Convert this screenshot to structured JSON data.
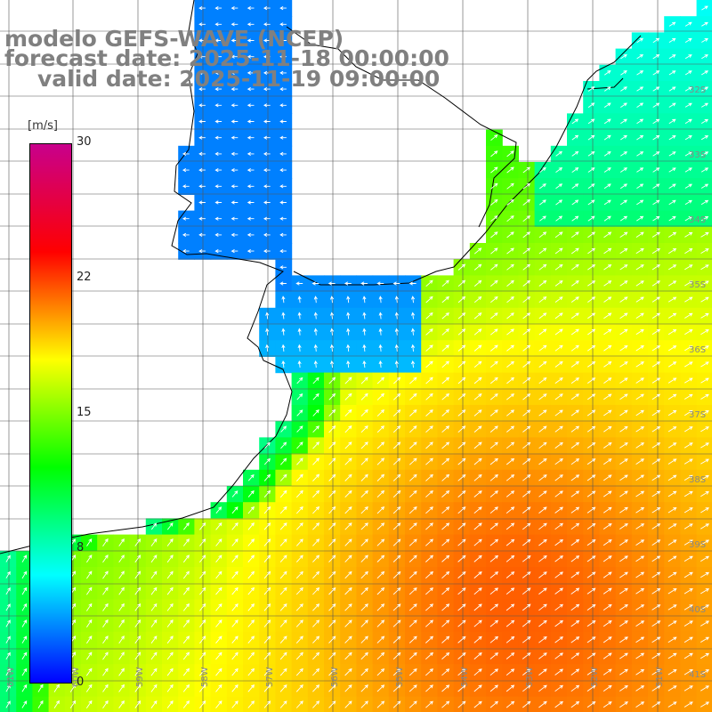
{
  "header": {
    "line1": "modelo GEFS-WAVE (NCEP)",
    "line2": "forecast date: 2025-11-18 00:00:00",
    "line3": "valid date: 2025-11-19 09:00:00"
  },
  "colorbar": {
    "unit": "[m/s]",
    "min": 0,
    "max": 30,
    "ticks": [
      "30",
      "22",
      "15",
      "8",
      "0"
    ],
    "colors": [
      "#0000ff",
      "#00ffff",
      "#00ff00",
      "#ffff00",
      "#ff0000",
      "#c8008c"
    ]
  },
  "lat_labels": [
    "32S",
    "33S",
    "34S",
    "35S",
    "36S",
    "37S",
    "38S",
    "39S",
    "40S",
    "41S"
  ],
  "lon_labels": [
    "61W",
    "60W",
    "59W",
    "58W",
    "57W",
    "56W",
    "55W",
    "54W",
    "53W",
    "52W",
    "51W"
  ]
}
